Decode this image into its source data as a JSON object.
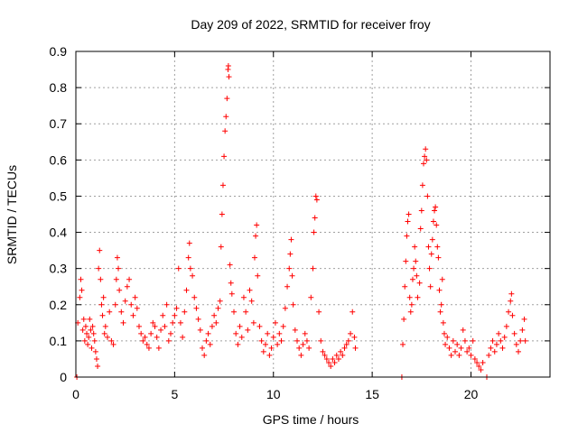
{
  "chart_data": {
    "type": "scatter",
    "title": "Day 209 of 2022, SRMTID for receiver froy",
    "xlabel": "GPS time / hours",
    "ylabel": "SRMTID / TECUs",
    "xlim": [
      0,
      24
    ],
    "ylim": [
      0,
      0.9
    ],
    "grid": true,
    "marker": "+",
    "marker_color": "#ff0000",
    "xticks": [
      0,
      5,
      10,
      15,
      20
    ],
    "xtick_labels": [
      "0",
      "5",
      "10",
      "15",
      "20"
    ],
    "yticks": [
      0,
      0.1,
      0.2,
      0.3,
      0.4,
      0.5,
      0.6,
      0.7,
      0.8,
      0.9
    ],
    "ytick_labels": [
      "0",
      "0.1",
      "0.2",
      "0.3",
      "0.4",
      "0.5",
      "0.6",
      "0.7",
      "0.8",
      "0.9"
    ],
    "series": [
      {
        "name": "SRMTID",
        "points": [
          [
            0.05,
            0.0
          ],
          [
            0.1,
            0.15
          ],
          [
            0.2,
            0.22
          ],
          [
            0.25,
            0.27
          ],
          [
            0.3,
            0.24
          ],
          [
            0.35,
            0.13
          ],
          [
            0.4,
            0.16
          ],
          [
            0.45,
            0.1
          ],
          [
            0.5,
            0.14
          ],
          [
            0.55,
            0.12
          ],
          [
            0.6,
            0.09
          ],
          [
            0.65,
            0.11
          ],
          [
            0.7,
            0.16
          ],
          [
            0.75,
            0.13
          ],
          [
            0.8,
            0.08
          ],
          [
            0.85,
            0.14
          ],
          [
            0.9,
            0.12
          ],
          [
            0.95,
            0.1
          ],
          [
            1.0,
            0.07
          ],
          [
            1.05,
            0.05
          ],
          [
            1.1,
            0.03
          ],
          [
            1.15,
            0.3
          ],
          [
            1.2,
            0.35
          ],
          [
            1.25,
            0.27
          ],
          [
            1.3,
            0.2
          ],
          [
            1.35,
            0.17
          ],
          [
            1.4,
            0.22
          ],
          [
            1.45,
            0.12
          ],
          [
            1.5,
            0.14
          ],
          [
            1.6,
            0.11
          ],
          [
            1.7,
            0.18
          ],
          [
            1.8,
            0.1
          ],
          [
            1.9,
            0.09
          ],
          [
            2.0,
            0.2
          ],
          [
            2.05,
            0.27
          ],
          [
            2.1,
            0.33
          ],
          [
            2.15,
            0.3
          ],
          [
            2.2,
            0.24
          ],
          [
            2.3,
            0.18
          ],
          [
            2.4,
            0.15
          ],
          [
            2.5,
            0.21
          ],
          [
            2.6,
            0.25
          ],
          [
            2.7,
            0.27
          ],
          [
            2.8,
            0.2
          ],
          [
            2.9,
            0.17
          ],
          [
            3.0,
            0.22
          ],
          [
            3.1,
            0.19
          ],
          [
            3.2,
            0.14
          ],
          [
            3.3,
            0.12
          ],
          [
            3.4,
            0.1
          ],
          [
            3.5,
            0.11
          ],
          [
            3.6,
            0.09
          ],
          [
            3.7,
            0.08
          ],
          [
            3.8,
            0.12
          ],
          [
            3.9,
            0.15
          ],
          [
            4.0,
            0.14
          ],
          [
            4.1,
            0.11
          ],
          [
            4.2,
            0.08
          ],
          [
            4.3,
            0.13
          ],
          [
            4.4,
            0.17
          ],
          [
            4.5,
            0.14
          ],
          [
            4.6,
            0.2
          ],
          [
            4.7,
            0.1
          ],
          [
            4.8,
            0.12
          ],
          [
            4.9,
            0.15
          ],
          [
            5.0,
            0.17
          ],
          [
            5.1,
            0.19
          ],
          [
            5.2,
            0.3
          ],
          [
            5.3,
            0.15
          ],
          [
            5.4,
            0.11
          ],
          [
            5.5,
            0.18
          ],
          [
            5.6,
            0.24
          ],
          [
            5.7,
            0.33
          ],
          [
            5.75,
            0.37
          ],
          [
            5.8,
            0.3
          ],
          [
            5.9,
            0.28
          ],
          [
            6.0,
            0.22
          ],
          [
            6.1,
            0.19
          ],
          [
            6.2,
            0.16
          ],
          [
            6.3,
            0.13
          ],
          [
            6.4,
            0.08
          ],
          [
            6.5,
            0.06
          ],
          [
            6.6,
            0.1
          ],
          [
            6.7,
            0.12
          ],
          [
            6.8,
            0.09
          ],
          [
            6.9,
            0.14
          ],
          [
            7.0,
            0.17
          ],
          [
            7.1,
            0.15
          ],
          [
            7.2,
            0.19
          ],
          [
            7.3,
            0.21
          ],
          [
            7.35,
            0.36
          ],
          [
            7.4,
            0.45
          ],
          [
            7.45,
            0.53
          ],
          [
            7.5,
            0.61
          ],
          [
            7.55,
            0.68
          ],
          [
            7.6,
            0.72
          ],
          [
            7.65,
            0.77
          ],
          [
            7.7,
            0.85
          ],
          [
            7.72,
            0.86
          ],
          [
            7.75,
            0.83
          ],
          [
            7.8,
            0.31
          ],
          [
            7.85,
            0.26
          ],
          [
            7.9,
            0.23
          ],
          [
            8.0,
            0.18
          ],
          [
            8.1,
            0.12
          ],
          [
            8.2,
            0.09
          ],
          [
            8.3,
            0.14
          ],
          [
            8.4,
            0.11
          ],
          [
            8.5,
            0.22
          ],
          [
            8.6,
            0.18
          ],
          [
            8.7,
            0.13
          ],
          [
            8.8,
            0.24
          ],
          [
            8.9,
            0.21
          ],
          [
            9.0,
            0.15
          ],
          [
            9.05,
            0.33
          ],
          [
            9.1,
            0.39
          ],
          [
            9.15,
            0.42
          ],
          [
            9.2,
            0.28
          ],
          [
            9.3,
            0.14
          ],
          [
            9.4,
            0.1
          ],
          [
            9.5,
            0.07
          ],
          [
            9.6,
            0.09
          ],
          [
            9.7,
            0.12
          ],
          [
            9.8,
            0.06
          ],
          [
            9.9,
            0.08
          ],
          [
            10.0,
            0.11
          ],
          [
            10.1,
            0.15
          ],
          [
            10.2,
            0.09
          ],
          [
            10.3,
            0.12
          ],
          [
            10.4,
            0.1
          ],
          [
            10.5,
            0.14
          ],
          [
            10.6,
            0.19
          ],
          [
            10.7,
            0.25
          ],
          [
            10.8,
            0.3
          ],
          [
            10.85,
            0.34
          ],
          [
            10.9,
            0.38
          ],
          [
            10.95,
            0.28
          ],
          [
            11.0,
            0.2
          ],
          [
            11.1,
            0.13
          ],
          [
            11.2,
            0.1
          ],
          [
            11.3,
            0.08
          ],
          [
            11.4,
            0.06
          ],
          [
            11.5,
            0.09
          ],
          [
            11.6,
            0.12
          ],
          [
            11.7,
            0.1
          ],
          [
            11.8,
            0.08
          ],
          [
            11.9,
            0.22
          ],
          [
            12.0,
            0.3
          ],
          [
            12.05,
            0.4
          ],
          [
            12.1,
            0.44
          ],
          [
            12.15,
            0.5
          ],
          [
            12.2,
            0.49
          ],
          [
            12.3,
            0.18
          ],
          [
            12.4,
            0.1
          ],
          [
            12.5,
            0.07
          ],
          [
            12.6,
            0.06
          ],
          [
            12.7,
            0.05
          ],
          [
            12.8,
            0.04
          ],
          [
            12.9,
            0.03
          ],
          [
            13.0,
            0.05
          ],
          [
            13.1,
            0.04
          ],
          [
            13.2,
            0.06
          ],
          [
            13.3,
            0.05
          ],
          [
            13.4,
            0.07
          ],
          [
            13.5,
            0.06
          ],
          [
            13.6,
            0.08
          ],
          [
            13.7,
            0.09
          ],
          [
            13.8,
            0.1
          ],
          [
            13.9,
            0.12
          ],
          [
            14.0,
            0.18
          ],
          [
            14.1,
            0.11
          ],
          [
            14.15,
            0.08
          ],
          [
            16.5,
            0.0
          ],
          [
            16.55,
            0.09
          ],
          [
            16.6,
            0.16
          ],
          [
            16.65,
            0.25
          ],
          [
            16.7,
            0.32
          ],
          [
            16.75,
            0.39
          ],
          [
            16.8,
            0.43
          ],
          [
            16.85,
            0.45
          ],
          [
            16.9,
            0.22
          ],
          [
            16.95,
            0.18
          ],
          [
            17.0,
            0.2
          ],
          [
            17.05,
            0.27
          ],
          [
            17.1,
            0.3
          ],
          [
            17.15,
            0.36
          ],
          [
            17.2,
            0.32
          ],
          [
            17.25,
            0.28
          ],
          [
            17.3,
            0.22
          ],
          [
            17.4,
            0.26
          ],
          [
            17.45,
            0.41
          ],
          [
            17.5,
            0.46
          ],
          [
            17.55,
            0.53
          ],
          [
            17.6,
            0.59
          ],
          [
            17.65,
            0.61
          ],
          [
            17.7,
            0.63
          ],
          [
            17.75,
            0.6
          ],
          [
            17.8,
            0.5
          ],
          [
            17.85,
            0.36
          ],
          [
            17.9,
            0.3
          ],
          [
            17.95,
            0.25
          ],
          [
            18.0,
            0.34
          ],
          [
            18.05,
            0.38
          ],
          [
            18.1,
            0.43
          ],
          [
            18.15,
            0.46
          ],
          [
            18.2,
            0.47
          ],
          [
            18.25,
            0.42
          ],
          [
            18.3,
            0.36
          ],
          [
            18.35,
            0.33
          ],
          [
            18.4,
            0.24
          ],
          [
            18.45,
            0.18
          ],
          [
            18.5,
            0.2
          ],
          [
            18.55,
            0.27
          ],
          [
            18.6,
            0.15
          ],
          [
            18.65,
            0.12
          ],
          [
            18.7,
            0.09
          ],
          [
            18.8,
            0.11
          ],
          [
            18.9,
            0.08
          ],
          [
            19.0,
            0.06
          ],
          [
            19.1,
            0.1
          ],
          [
            19.2,
            0.07
          ],
          [
            19.3,
            0.09
          ],
          [
            19.4,
            0.06
          ],
          [
            19.5,
            0.08
          ],
          [
            19.6,
            0.13
          ],
          [
            19.7,
            0.1
          ],
          [
            19.8,
            0.07
          ],
          [
            19.9,
            0.08
          ],
          [
            20.0,
            0.06
          ],
          [
            20.1,
            0.1
          ],
          [
            20.2,
            0.05
          ],
          [
            20.3,
            0.04
          ],
          [
            20.4,
            0.03
          ],
          [
            20.5,
            0.02
          ],
          [
            20.6,
            0.04
          ],
          [
            20.8,
            0.0
          ],
          [
            20.9,
            0.06
          ],
          [
            21.0,
            0.08
          ],
          [
            21.1,
            0.1
          ],
          [
            21.2,
            0.07
          ],
          [
            21.3,
            0.09
          ],
          [
            21.4,
            0.12
          ],
          [
            21.5,
            0.1
          ],
          [
            21.6,
            0.08
          ],
          [
            21.7,
            0.11
          ],
          [
            21.8,
            0.14
          ],
          [
            21.9,
            0.18
          ],
          [
            22.0,
            0.21
          ],
          [
            22.05,
            0.23
          ],
          [
            22.1,
            0.17
          ],
          [
            22.2,
            0.12
          ],
          [
            22.3,
            0.09
          ],
          [
            22.4,
            0.07
          ],
          [
            22.5,
            0.1
          ],
          [
            22.6,
            0.13
          ],
          [
            22.7,
            0.16
          ],
          [
            22.75,
            0.1
          ]
        ]
      }
    ]
  }
}
